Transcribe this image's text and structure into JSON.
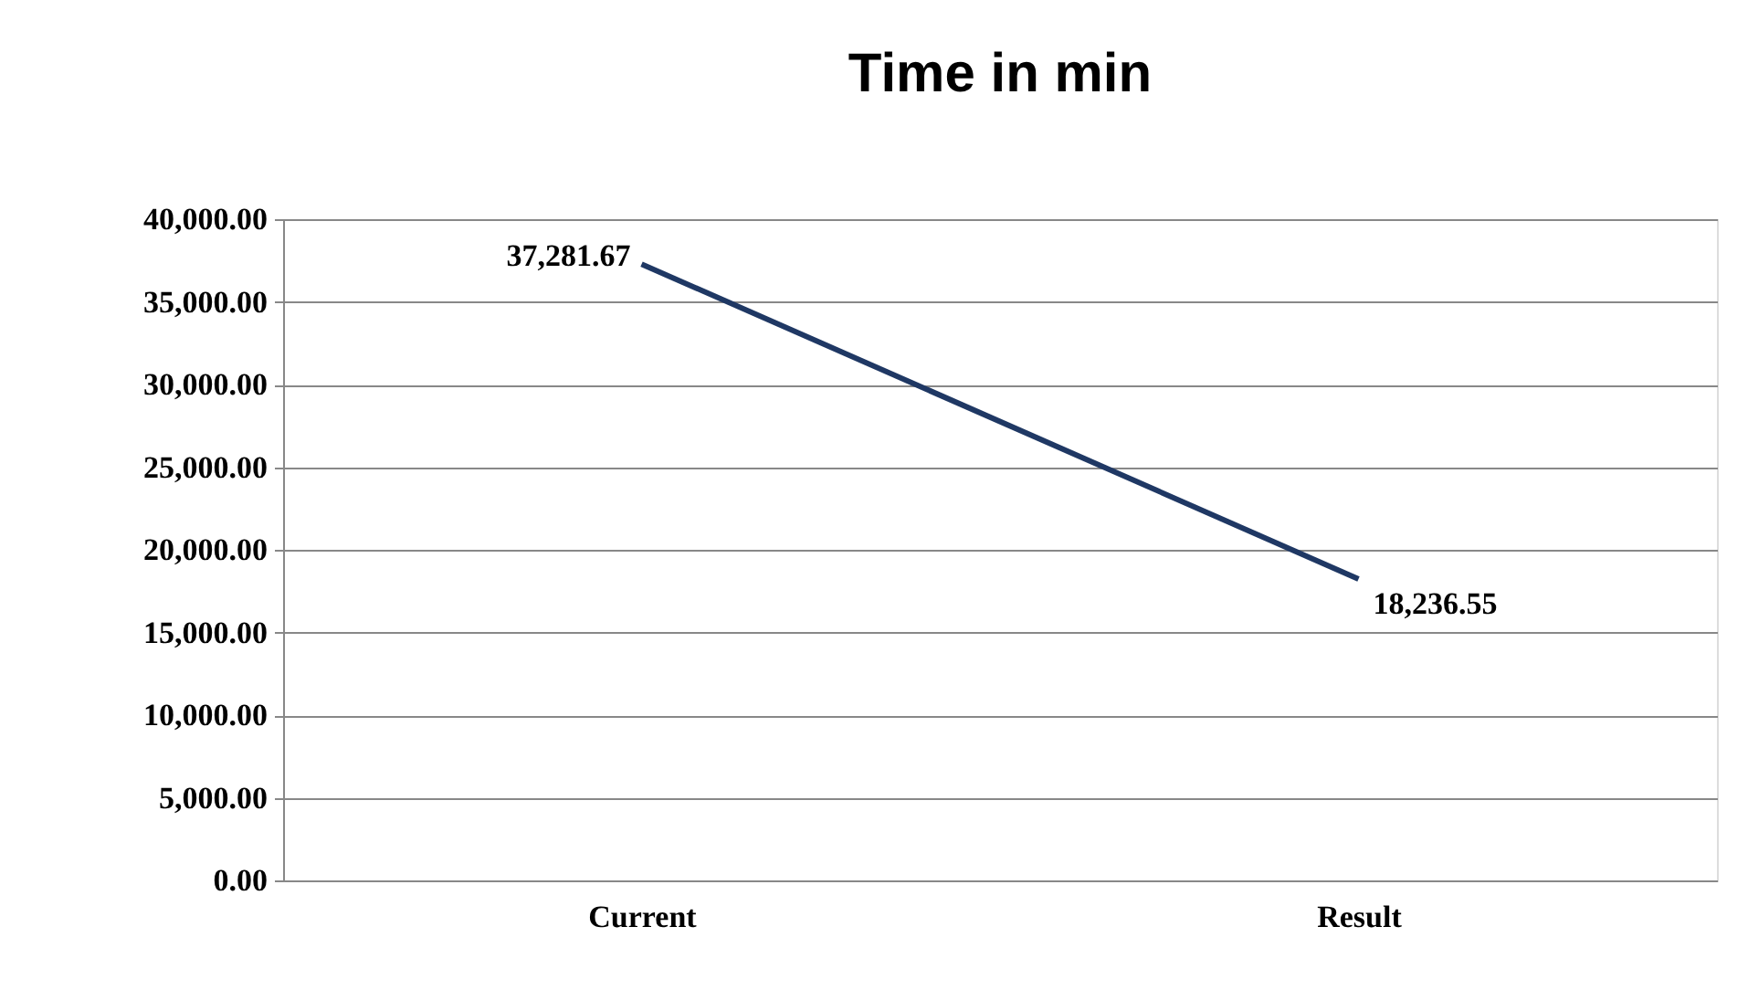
{
  "chart_data": {
    "type": "line",
    "title": "Time in min",
    "categories": [
      "Current",
      "Result"
    ],
    "series": [
      {
        "color": "#1f3864",
        "values": [
          37281.67,
          18236.55
        ]
      }
    ],
    "ylim": [
      0,
      40000
    ],
    "yticks": [
      {
        "value": 0,
        "label": "0.00"
      },
      {
        "value": 5000,
        "label": "5,000.00"
      },
      {
        "value": 10000,
        "label": "10,000.00"
      },
      {
        "value": 15000,
        "label": "15,000.00"
      },
      {
        "value": 20000,
        "label": "20,000.00"
      },
      {
        "value": 25000,
        "label": "25,000.00"
      },
      {
        "value": 30000,
        "label": "30,000.00"
      },
      {
        "value": 35000,
        "label": "35,000.00"
      },
      {
        "value": 40000,
        "label": "40,000.00"
      }
    ],
    "value_labels": [
      "37,281.67",
      "18,236.55"
    ],
    "grid": "y",
    "marker": "none",
    "line_style": "solid"
  }
}
